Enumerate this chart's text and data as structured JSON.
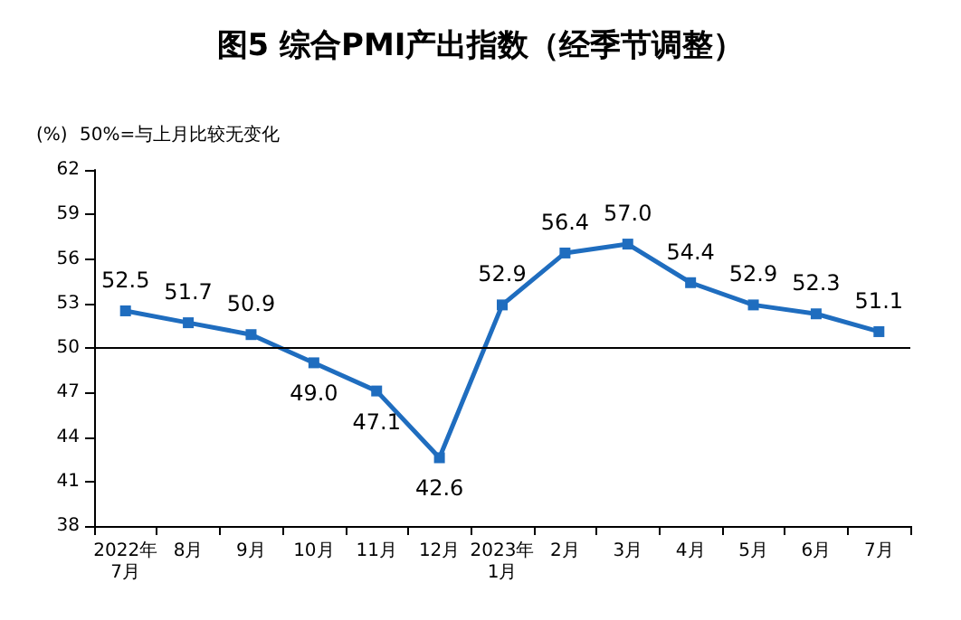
{
  "chart_data": {
    "type": "line",
    "title": "图5 综合PMI产出指数（经季节调整）",
    "ylabel": "(%)",
    "annotations": [
      "50%=与上月比较无变化"
    ],
    "categories": [
      "2022年\n7月",
      "8月",
      "9月",
      "10月",
      "11月",
      "12月",
      "2023年\n1月",
      "2月",
      "3月",
      "4月",
      "5月",
      "6月",
      "7月"
    ],
    "series": [
      {
        "color": "#1f6dbf",
        "values": [
          52.5,
          51.7,
          50.9,
          49.0,
          47.1,
          42.6,
          52.9,
          56.4,
          57.0,
          54.4,
          52.9,
          52.3,
          51.1
        ],
        "value_labels": [
          "52.5",
          "51.7",
          "50.9",
          "49.0",
          "47.1",
          "42.6",
          "52.9",
          "56.4",
          "57.0",
          "54.4",
          "52.9",
          "52.3",
          "51.1"
        ]
      }
    ],
    "ylim": [
      38,
      62
    ],
    "yticks": [
      38,
      41,
      44,
      47,
      50,
      53,
      56,
      59,
      62
    ],
    "grid": false,
    "marker": "square",
    "line_style": "solid",
    "ref_lines": [
      {
        "axis": "y",
        "value": 50,
        "color": "#000000"
      }
    ]
  }
}
